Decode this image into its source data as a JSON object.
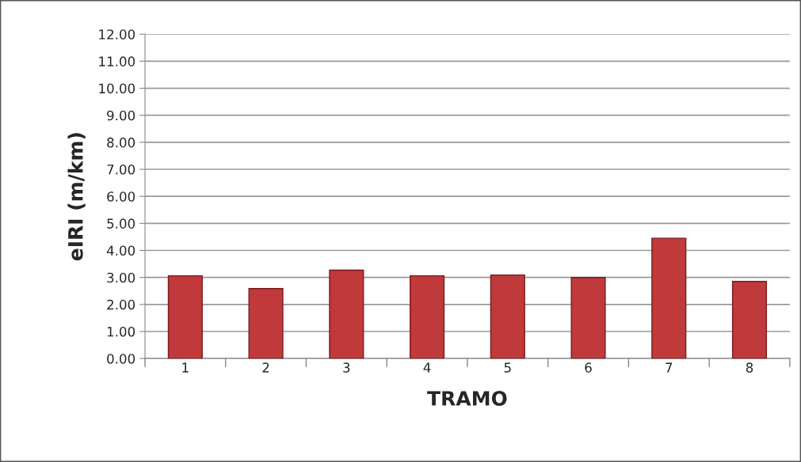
{
  "chart_data": {
    "type": "bar",
    "xlabel": "TRAMO",
    "ylabel": "eIRI (m/km)",
    "categories": [
      "1",
      "2",
      "3",
      "4",
      "5",
      "6",
      "7",
      "8"
    ],
    "values": [
      3.06,
      2.59,
      3.27,
      3.06,
      3.09,
      3.0,
      4.45,
      2.85
    ],
    "color": "#c0393b",
    "ylim": [
      0,
      12
    ],
    "yticks": [
      {
        "value": 0,
        "label": "0.00"
      },
      {
        "value": 1,
        "label": "1.00"
      },
      {
        "value": 2,
        "label": "2.00"
      },
      {
        "value": 3,
        "label": "3.00"
      },
      {
        "value": 4,
        "label": "4.00"
      },
      {
        "value": 5,
        "label": "5.00"
      },
      {
        "value": 6,
        "label": "6.00"
      },
      {
        "value": 7,
        "label": "7.00"
      },
      {
        "value": 8,
        "label": "8.00"
      },
      {
        "value": 9,
        "label": "9.00"
      },
      {
        "value": 10,
        "label": "10.00"
      },
      {
        "value": 11,
        "label": "11.00"
      },
      {
        "value": 12,
        "label": "12.00"
      }
    ],
    "grid": "y",
    "legend": false
  }
}
